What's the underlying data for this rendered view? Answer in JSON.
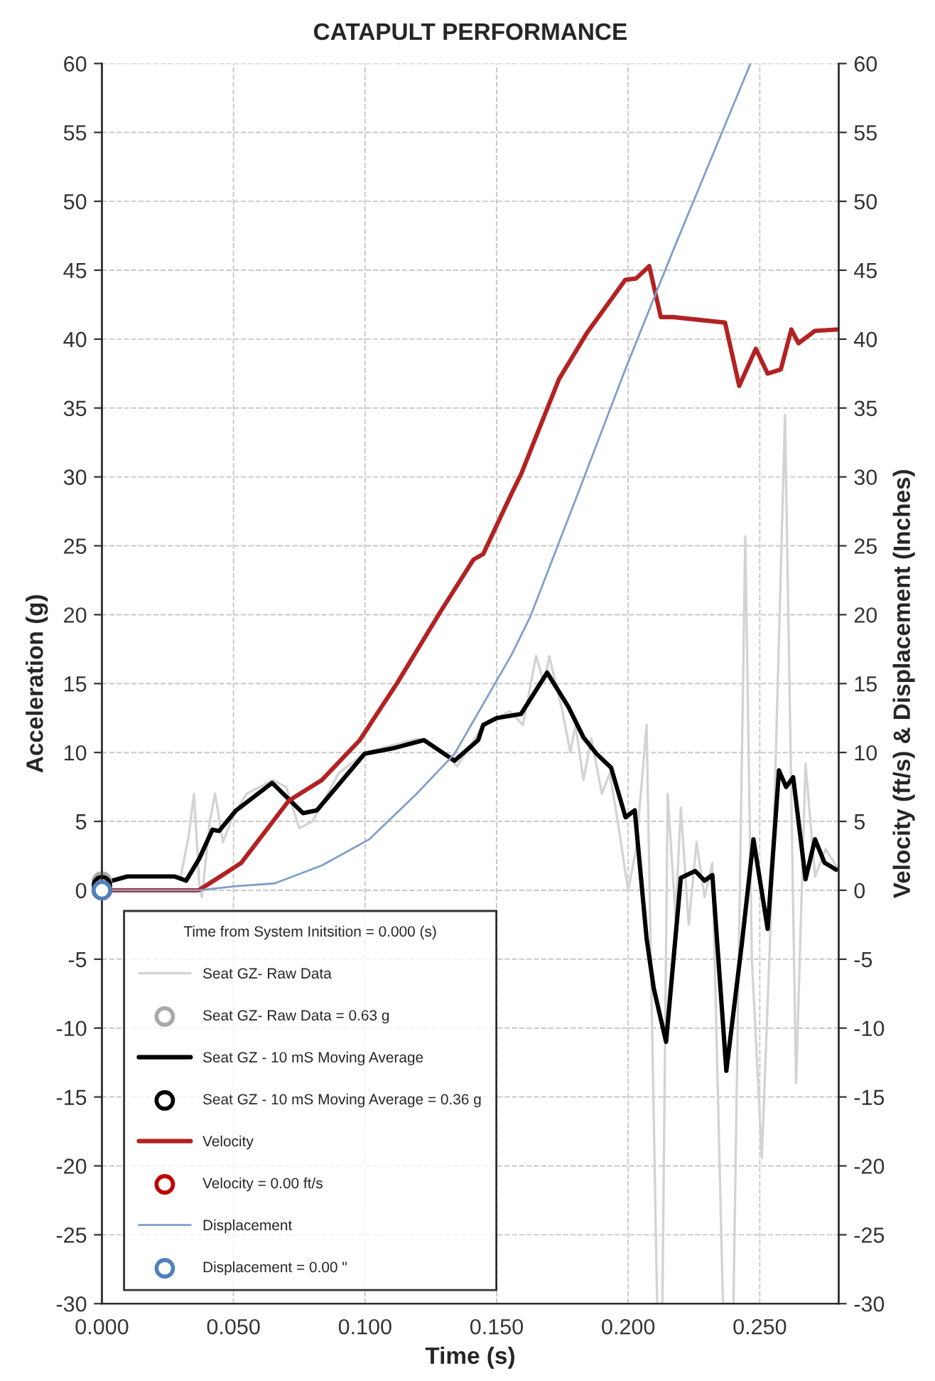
{
  "chart_data": {
    "type": "line",
    "title": "CATAPULT PERFORMANCE",
    "xlabel": "Time (s)",
    "ylabel": "Acceleration (g)",
    "y2label": "Velocity (ft/s) & Displacement (Inches)",
    "legend_title": "Time from System Initsition = 0.000 (s)",
    "legend": "bottom left",
    "grid": true,
    "xlim": [
      0,
      0.28
    ],
    "xticks": [
      {
        "value": 0,
        "label": "0.000"
      },
      {
        "value": 0.05,
        "label": "0.050"
      },
      {
        "value": 0.1,
        "label": "0.100"
      },
      {
        "value": 0.15,
        "label": "0.150"
      },
      {
        "value": 0.2,
        "label": "0.200"
      },
      {
        "value": 0.25,
        "label": "0.250"
      }
    ],
    "ylim": [
      -30,
      60
    ],
    "yticks": [
      -30,
      -25,
      -20,
      -15,
      -10,
      -5,
      0,
      5,
      10,
      15,
      20,
      25,
      30,
      35,
      40,
      45,
      50,
      55,
      60
    ],
    "y2lim": [
      -30,
      60
    ],
    "y2ticks": [
      -30,
      -25,
      -20,
      -15,
      -10,
      -5,
      0,
      5,
      10,
      15,
      20,
      25,
      30,
      35,
      40,
      45,
      50,
      55,
      60
    ],
    "series": [
      {
        "name": "Seat GZ- Raw Data",
        "color": "#d3d3d3",
        "x": [
          0,
          0.005,
          0.01,
          0.03,
          0.033,
          0.035,
          0.037,
          0.038,
          0.041,
          0.043,
          0.046,
          0.05,
          0.055,
          0.06,
          0.065,
          0.07,
          0.075,
          0.08,
          0.09,
          0.1,
          0.11,
          0.12,
          0.13,
          0.135,
          0.145,
          0.155,
          0.16,
          0.165,
          0.168,
          0.17,
          0.175,
          0.178,
          0.18,
          0.183,
          0.186,
          0.19,
          0.193,
          0.196,
          0.2,
          0.203,
          0.207,
          0.211,
          0.213,
          0.215,
          0.218,
          0.22,
          0.223,
          0.226,
          0.229,
          0.232,
          0.236,
          0.24,
          0.2445,
          0.247,
          0.2508,
          0.255,
          0.2596,
          0.2638,
          0.2674,
          0.271,
          0.275,
          0.28
        ],
        "values": [
          0.6,
          0.8,
          1.0,
          1.0,
          4,
          7,
          0.5,
          -0.5,
          5,
          7,
          3.5,
          5.5,
          7,
          7.5,
          8,
          7.5,
          4.5,
          5,
          8.5,
          10,
          10.5,
          11,
          10,
          9,
          12,
          13,
          12,
          17,
          15,
          17,
          13,
          10,
          12,
          8,
          11,
          7,
          8.5,
          5,
          0,
          3,
          12,
          -30,
          -30,
          7,
          -2,
          6,
          -2.5,
          3.5,
          -0.5,
          2,
          -30,
          -30,
          25.7,
          -5,
          -19.4,
          2,
          34.5,
          -14,
          9.2,
          1,
          3,
          1.5
        ]
      },
      {
        "name": "Seat GZ- Raw Data = 0.63 g",
        "type": "scatter",
        "marker": "circle",
        "color": "#a9a9a9",
        "x": [
          0
        ],
        "values": [
          0.63
        ]
      },
      {
        "name": "Seat GZ - 10 mS Moving Average",
        "color": "#000000",
        "x": [
          0,
          0.0097,
          0.0277,
          0.032,
          0.037,
          0.042,
          0.0445,
          0.051,
          0.0647,
          0.0764,
          0.0817,
          0.0998,
          0.1106,
          0.1224,
          0.134,
          0.143,
          0.1449,
          0.15,
          0.1593,
          0.1692,
          0.1773,
          0.183,
          0.188,
          0.1935,
          0.199,
          0.2025,
          0.207,
          0.2097,
          0.2144,
          0.22,
          0.2255,
          0.229,
          0.232,
          0.2373,
          0.2433,
          0.2476,
          0.253,
          0.2573,
          0.26,
          0.2627,
          0.2674,
          0.271,
          0.2746,
          0.279
        ],
        "values": [
          0.5,
          1.0,
          1.0,
          0.7,
          2.3,
          4.4,
          4.3,
          5.8,
          7.8,
          5.6,
          5.8,
          9.9,
          10.3,
          10.9,
          9.4,
          10.9,
          12.0,
          12.5,
          12.8,
          15.8,
          13.3,
          11.1,
          9.9,
          8.9,
          5.3,
          5.8,
          -3.5,
          -7.1,
          -11.0,
          0.9,
          1.4,
          0.7,
          1.1,
          -13.1,
          -3.7,
          3.7,
          -2.8,
          8.7,
          7.5,
          8.2,
          0.8,
          3.7,
          2.0,
          1.5
        ]
      },
      {
        "name": "Seat GZ - 10 mS Moving Average = 0.36 g",
        "type": "scatter",
        "marker": "circle",
        "color": "#000000",
        "x": [
          0
        ],
        "values": [
          0.36
        ]
      },
      {
        "name": "Velocity",
        "axis": "y2",
        "color": "#b22222",
        "x": [
          0,
          0.0368,
          0.0458,
          0.053,
          0.071,
          0.0836,
          0.098,
          0.1124,
          0.1286,
          0.1412,
          0.1449,
          0.1557,
          0.1593,
          0.1737,
          0.1845,
          0.1989,
          0.203,
          0.208,
          0.2124,
          0.217,
          0.2368,
          0.2422,
          0.2485,
          0.253,
          0.258,
          0.262,
          0.2647,
          0.271,
          0.28
        ],
        "values": [
          0,
          0,
          1.1,
          2.0,
          6.5,
          8.0,
          10.9,
          15.1,
          20.2,
          24.0,
          24.4,
          28.8,
          30.2,
          37.1,
          40.5,
          44.3,
          44.4,
          45.3,
          41.6,
          41.6,
          41.2,
          36.6,
          39.3,
          37.5,
          37.8,
          40.7,
          39.7,
          40.6,
          40.7
        ]
      },
      {
        "name": "Velocity = 0.00 ft/s",
        "type": "scatter",
        "axis": "y2",
        "marker": "circle",
        "color": "#c00000",
        "x": [
          0
        ],
        "values": [
          0
        ]
      },
      {
        "name": "Displacement",
        "axis": "y2",
        "color": "#7f9fc8",
        "x": [
          0,
          0.037,
          0.0512,
          0.0656,
          0.0836,
          0.1016,
          0.1196,
          0.134,
          0.1557,
          0.1629,
          0.1809,
          0.1989,
          0.217,
          0.2465
        ],
        "values": [
          0,
          0,
          0.3,
          0.5,
          1.8,
          3.7,
          7.0,
          9.9,
          17.1,
          19.9,
          28.8,
          37.8,
          46.4,
          60
        ]
      },
      {
        "name": "Displacement = 0.00 \"",
        "type": "scatter",
        "axis": "y2",
        "marker": "circle",
        "color": "#4f81bd",
        "x": [
          0
        ],
        "values": [
          0
        ]
      }
    ]
  }
}
